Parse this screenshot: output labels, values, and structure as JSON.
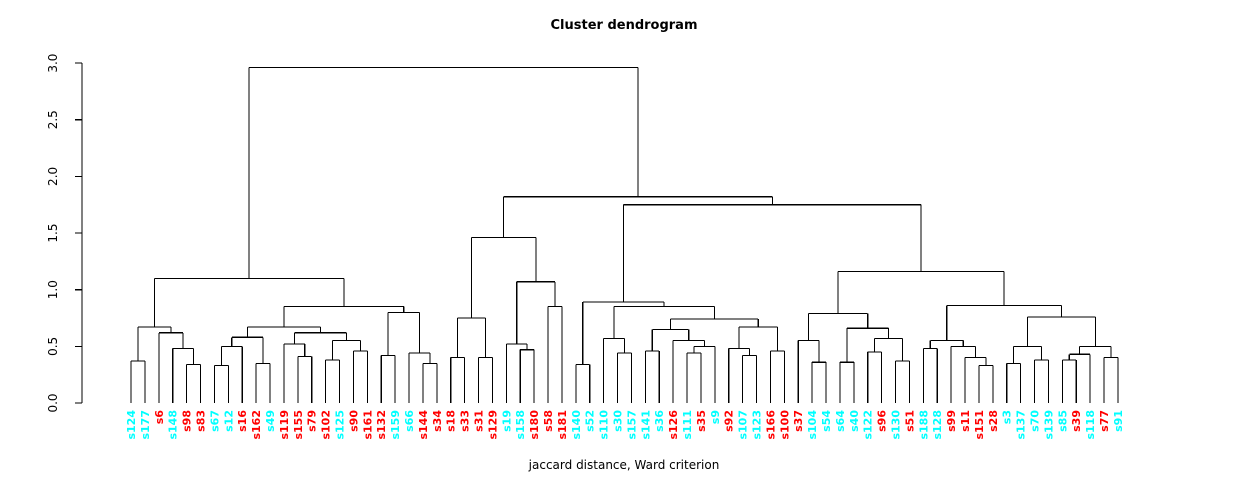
{
  "title": "Cluster dendrogram",
  "caption": "jaccard distance, Ward criterion",
  "axis": {
    "ticks": [
      "0.0",
      "0.5",
      "1.0",
      "1.5",
      "2.0",
      "2.5",
      "3.0"
    ],
    "tick_values": [
      0,
      0.5,
      1,
      1.5,
      2,
      2.5,
      3
    ],
    "max": 3.0
  },
  "colors": {
    "red": "#FF0000",
    "cyan": "#00FFFF",
    "line": "#000000"
  },
  "chart_data": {
    "type": "dendrogram",
    "title": "Cluster dendrogram",
    "xlabel": "jaccard distance, Ward criterion",
    "ylabel": "",
    "ylim": [
      0,
      3.0
    ],
    "grid": false,
    "leaves": [
      {
        "label": "s124",
        "color": "cyan"
      },
      {
        "label": "s177",
        "color": "cyan"
      },
      {
        "label": "s6",
        "color": "red"
      },
      {
        "label": "s148",
        "color": "cyan"
      },
      {
        "label": "s98",
        "color": "red"
      },
      {
        "label": "s83",
        "color": "red"
      },
      {
        "label": "s67",
        "color": "cyan"
      },
      {
        "label": "s12",
        "color": "cyan"
      },
      {
        "label": "s16",
        "color": "red"
      },
      {
        "label": "s162",
        "color": "red"
      },
      {
        "label": "s49",
        "color": "cyan"
      },
      {
        "label": "s119",
        "color": "red"
      },
      {
        "label": "s155",
        "color": "red"
      },
      {
        "label": "s79",
        "color": "red"
      },
      {
        "label": "s102",
        "color": "red"
      },
      {
        "label": "s125",
        "color": "cyan"
      },
      {
        "label": "s90",
        "color": "red"
      },
      {
        "label": "s161",
        "color": "red"
      },
      {
        "label": "s132",
        "color": "red"
      },
      {
        "label": "s159",
        "color": "cyan"
      },
      {
        "label": "s66",
        "color": "cyan"
      },
      {
        "label": "s144",
        "color": "red"
      },
      {
        "label": "s34",
        "color": "red"
      },
      {
        "label": "s18",
        "color": "red"
      },
      {
        "label": "s33",
        "color": "red"
      },
      {
        "label": "s31",
        "color": "red"
      },
      {
        "label": "s129",
        "color": "red"
      },
      {
        "label": "s19",
        "color": "cyan"
      },
      {
        "label": "s158",
        "color": "cyan"
      },
      {
        "label": "s180",
        "color": "red"
      },
      {
        "label": "s58",
        "color": "red"
      },
      {
        "label": "s181",
        "color": "red"
      },
      {
        "label": "s140",
        "color": "cyan"
      },
      {
        "label": "s52",
        "color": "cyan"
      },
      {
        "label": "s110",
        "color": "cyan"
      },
      {
        "label": "s30",
        "color": "cyan"
      },
      {
        "label": "s157",
        "color": "cyan"
      },
      {
        "label": "s141",
        "color": "cyan"
      },
      {
        "label": "s36",
        "color": "cyan"
      },
      {
        "label": "s126",
        "color": "red"
      },
      {
        "label": "s111",
        "color": "cyan"
      },
      {
        "label": "s35",
        "color": "red"
      },
      {
        "label": "s9",
        "color": "cyan"
      },
      {
        "label": "s92",
        "color": "red"
      },
      {
        "label": "s107",
        "color": "cyan"
      },
      {
        "label": "s123",
        "color": "cyan"
      },
      {
        "label": "s166",
        "color": "red"
      },
      {
        "label": "s100",
        "color": "red"
      },
      {
        "label": "s37",
        "color": "red"
      },
      {
        "label": "s104",
        "color": "cyan"
      },
      {
        "label": "s54",
        "color": "cyan"
      },
      {
        "label": "s64",
        "color": "cyan"
      },
      {
        "label": "s40",
        "color": "cyan"
      },
      {
        "label": "s122",
        "color": "cyan"
      },
      {
        "label": "s96",
        "color": "red"
      },
      {
        "label": "s130",
        "color": "cyan"
      },
      {
        "label": "s51",
        "color": "red"
      },
      {
        "label": "s188",
        "color": "cyan"
      },
      {
        "label": "s128",
        "color": "cyan"
      },
      {
        "label": "s99",
        "color": "red"
      },
      {
        "label": "s11",
        "color": "red"
      },
      {
        "label": "s151",
        "color": "red"
      },
      {
        "label": "s28",
        "color": "red"
      },
      {
        "label": "s3",
        "color": "cyan"
      },
      {
        "label": "s137",
        "color": "cyan"
      },
      {
        "label": "s70",
        "color": "cyan"
      },
      {
        "label": "s139",
        "color": "cyan"
      },
      {
        "label": "s85",
        "color": "cyan"
      },
      {
        "label": "s39",
        "color": "red"
      },
      {
        "label": "s118",
        "color": "cyan"
      },
      {
        "label": "s77",
        "color": "red"
      },
      {
        "label": "s91",
        "color": "cyan"
      }
    ],
    "merges": [
      2.96,
      [
        1.1,
        [
          0.67,
          [
            0.37,
            0,
            1
          ],
          [
            0.62,
            2,
            [
              0.48,
              3,
              [
                0.34,
                4,
                5
              ]
            ]
          ]
        ],
        [
          0.85,
          [
            0.67,
            [
              0.58,
              [
                0.5,
                [
                  0.33,
                  6,
                  7
                ],
                8
              ],
              [
                0.35,
                9,
                10
              ]
            ],
            [
              0.62,
              [
                0.52,
                11,
                [
                  0.41,
                  12,
                  13
                ]
              ],
              [
                0.55,
                [
                  0.38,
                  14,
                  15
                ],
                [
                  0.46,
                  16,
                  17
                ]
              ]
            ]
          ],
          [
            0.8,
            [
              0.42,
              18,
              19
            ],
            [
              0.44,
              20,
              [
                0.35,
                21,
                22
              ]
            ]
          ]
        ]
      ],
      [
        1.82,
        [
          1.46,
          [
            0.75,
            [
              0.4,
              23,
              24
            ],
            [
              0.4,
              25,
              26
            ]
          ],
          [
            1.07,
            [
              0.52,
              27,
              [
                0.47,
                28,
                29
              ]
            ],
            [
              0.85,
              30,
              31
            ]
          ]
        ],
        [
          1.75,
          [
            0.89,
            [
              0.34,
              32,
              33
            ],
            [
              0.85,
              [
                0.57,
                34,
                [
                  0.44,
                  35,
                  36
                ]
              ],
              [
                0.74,
                [
                  0.65,
                  [
                    0.46,
                    37,
                    38
                  ],
                  [
                    0.55,
                    39,
                    [
                      0.5,
                      [
                        0.44,
                        40,
                        41
                      ],
                      42
                    ]
                  ]
                ],
                [
                  0.67,
                  [
                    0.48,
                    43,
                    [
                      0.42,
                      44,
                      45
                    ]
                  ],
                  [
                    0.46,
                    46,
                    47
                  ]
                ]
              ]
            ]
          ],
          [
            1.16,
            [
              0.79,
              [
                0.55,
                48,
                [
                  0.36,
                  49,
                  50
                ]
              ],
              [
                0.66,
                [
                  0.36,
                  51,
                  52
                ],
                [
                  0.57,
                  [
                    0.45,
                    53,
                    54
                  ],
                  [
                    0.37,
                    55,
                    56
                  ]
                ]
              ]
            ],
            [
              0.86,
              [
                0.55,
                [
                  0.48,
                  57,
                  58
                ],
                [
                  0.5,
                  59,
                  [
                    0.4,
                    60,
                    [
                      0.33,
                      61,
                      62
                    ]
                  ]
                ]
              ],
              [
                0.76,
                [
                  0.5,
                  [
                    0.35,
                    63,
                    64
                  ],
                  [
                    0.38,
                    65,
                    66
                  ]
                ],
                [
                  0.5,
                  [
                    0.43,
                    [
                      0.38,
                      67,
                      68
                    ],
                    69
                  ],
                  [
                    0.4,
                    70,
                    71
                  ]
                ]
              ]
            ]
          ]
        ]
      ]
    ]
  }
}
